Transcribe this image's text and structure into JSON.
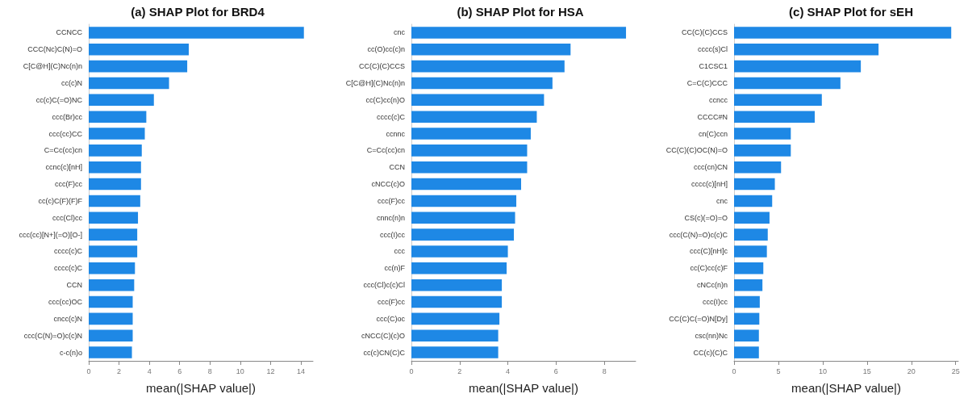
{
  "chart_data": [
    {
      "type": "bar",
      "orientation": "horizontal",
      "title": "(a) SHAP Plot for BRD4",
      "xlabel": "mean(|SHAP value|)",
      "categories": [
        "CCNCC",
        "CCC(Nc)C(N)=O",
        "C[C@H](C)Nc(n)n",
        "cc(c)N",
        "cc(c)C(=O)NC",
        "ccc(Br)cc",
        "ccc(cc)CC",
        "C=Cc(cc)cn",
        "ccnc(c)[nH]",
        "ccc(F)cc",
        "cc(c)C(F)(F)F",
        "ccc(Cl)cc",
        "ccc(cc)[N+](=O)[O-]",
        "cccc(c)C",
        "cccc(c)C",
        "CCN",
        "ccc(cc)OC",
        "cncc(c)N",
        "ccc(C(N)=O)c(c)N",
        "c-c(n)o"
      ],
      "values": [
        14.2,
        6.6,
        6.5,
        5.3,
        4.3,
        3.8,
        3.7,
        3.5,
        3.45,
        3.45,
        3.4,
        3.25,
        3.2,
        3.2,
        3.05,
        3.0,
        2.9,
        2.9,
        2.9,
        2.85
      ],
      "color": "#1e88e5",
      "xlim": [
        0,
        14.8
      ],
      "xticks": [
        0,
        2,
        4,
        6,
        8,
        10,
        12,
        14
      ]
    },
    {
      "type": "bar",
      "orientation": "horizontal",
      "title": "(b) SHAP Plot for HSA",
      "xlabel": "mean(|SHAP value|)",
      "categories": [
        "cnc",
        "cc(O)cc(c)n",
        "CC(C)(C)CCS",
        "C[C@H](C)Nc(n)n",
        "cc(C)cc(n)O",
        "cccc(c)C",
        "ccnnc",
        "C=Cc(cc)cn",
        "CCN",
        "cNCC(c)O",
        "ccc(F)cc",
        "cnnc(n)n",
        "ccc(I)cc",
        "ccc",
        "cc(n)F",
        "ccc(Cl)c(c)Cl",
        "ccc(F)cc",
        "ccc(C)oc",
        "cNCC(C)(c)O",
        "cc(c)CN(C)C"
      ],
      "values": [
        8.9,
        6.6,
        6.35,
        5.85,
        5.5,
        5.2,
        4.95,
        4.8,
        4.8,
        4.55,
        4.35,
        4.3,
        4.25,
        4.0,
        3.95,
        3.75,
        3.75,
        3.65,
        3.6,
        3.6
      ],
      "color": "#1e88e5",
      "xlim": [
        0,
        9.3
      ],
      "xticks": [
        0,
        2,
        4,
        6,
        8
      ]
    },
    {
      "type": "bar",
      "orientation": "horizontal",
      "title": "(c) SHAP Plot for sEH",
      "xlabel": "mean(|SHAP value|)",
      "categories": [
        "CC(C)(C)CCS",
        "cccc(s)Cl",
        "C1CSC1",
        "C=C(C)CCC",
        "ccncc",
        "CCCC#N",
        "cn(C)ccn",
        "CC(C)(C)OC(N)=O",
        "ccc(cn)CN",
        "cccc(c)[nH]",
        "cnc",
        "CS(c)(=O)=O",
        "ccc(C(N)=O)c(c)C",
        "ccc(C)[nH]c",
        "cc(C)cc(c)F",
        "cNCc(n)n",
        "ccc(I)cc",
        "CC(C)C(=O)N[Dy]",
        "csc(nn)Nc",
        "CC(c)(C)C"
      ],
      "values": [
        24.5,
        16.3,
        14.3,
        12.0,
        9.9,
        9.1,
        6.4,
        6.4,
        5.3,
        4.6,
        4.3,
        4.0,
        3.8,
        3.7,
        3.3,
        3.2,
        2.9,
        2.85,
        2.8,
        2.8
      ],
      "color": "#1e88e5",
      "xlim": [
        0,
        25.3
      ],
      "xticks": [
        0,
        5,
        10,
        15,
        20,
        25
      ]
    }
  ]
}
